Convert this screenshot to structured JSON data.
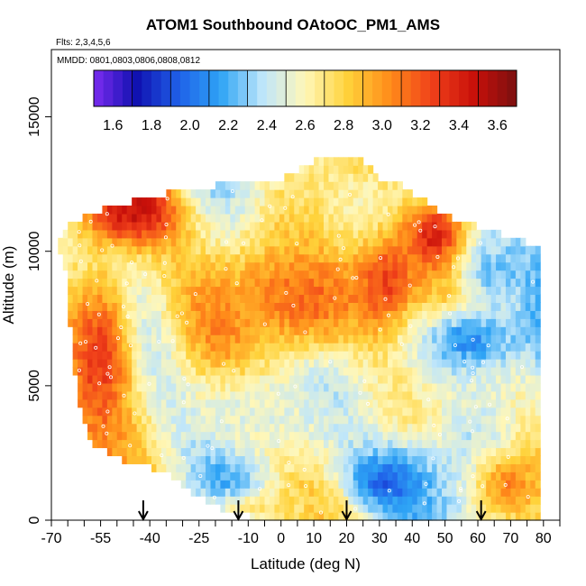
{
  "chart_data": {
    "type": "heatmap",
    "title": "ATOM1 Southbound OAtoOC_PM1_AMS",
    "flights_note": "Flts: 2,3,4,5,6",
    "dates_note": "MMDD: 0801,0803,0806,0808,0812",
    "xlabel": "Latitude (deg N)",
    "ylabel": "Altitude (m)",
    "xlim": [
      -70,
      85
    ],
    "ylim": [
      0,
      17500
    ],
    "x_ticks": [
      -70,
      -55,
      -40,
      -25,
      -10,
      0,
      10,
      20,
      30,
      40,
      50,
      60,
      70,
      80
    ],
    "x_minor_ticks": [
      -65,
      -60,
      -50,
      -45,
      -35,
      -30,
      -20,
      -15,
      -5,
      5,
      15,
      25,
      35,
      45,
      55,
      65,
      75,
      85
    ],
    "y_ticks": [
      0,
      5000,
      10000,
      15000
    ],
    "colorbar": {
      "min": 1.5,
      "max": 3.7,
      "ticks": [
        1.6,
        1.8,
        2.0,
        2.2,
        2.4,
        2.6,
        2.8,
        3.0,
        3.2,
        3.4,
        3.6
      ],
      "colors": [
        "#7b2cf0",
        "#1010b0",
        "#1f5fe8",
        "#2ea4f5",
        "#bfe6fa",
        "#fff7b8",
        "#ffd23a",
        "#ff8c1a",
        "#f0401a",
        "#c8100a",
        "#7a1010"
      ]
    },
    "profile_markers_latitude": [
      -42,
      -13,
      20,
      61
    ],
    "domain_envelope": {
      "lat": [
        -68,
        -66,
        -62,
        -58,
        -52,
        -46,
        -40,
        -35,
        -30,
        -25,
        -20,
        -15,
        -10,
        -5,
        0,
        5,
        10,
        15,
        20,
        25,
        30,
        35,
        40,
        45,
        50,
        55,
        60,
        65,
        70,
        75,
        79
      ],
      "alt_min": [
        10200,
        9800,
        4500,
        3000,
        2600,
        2300,
        2100,
        1900,
        1500,
        1000,
        700,
        400,
        300,
        200,
        150,
        100,
        100,
        100,
        100,
        100,
        100,
        100,
        100,
        100,
        100,
        100,
        100,
        100,
        100,
        100,
        100
      ],
      "alt_max": [
        10300,
        10700,
        11000,
        11200,
        11500,
        11700,
        11900,
        12000,
        12000,
        12100,
        12300,
        12400,
        12400,
        12400,
        12500,
        12800,
        13200,
        13200,
        13200,
        13300,
        12600,
        12500,
        12000,
        11600,
        11200,
        11000,
        10800,
        10600,
        10400,
        10200,
        10000
      ]
    },
    "features": [
      {
        "lat": [
          -60,
          -30
        ],
        "alt": [
          10500,
          12500
        ],
        "value": 3.5
      },
      {
        "lat": [
          -66,
          -45
        ],
        "alt": [
          2000,
          10000
        ],
        "value": 3.3
      },
      {
        "lat": [
          -20,
          35
        ],
        "alt": [
          6000,
          10500
        ],
        "value": 3.15
      },
      {
        "lat": [
          25,
          40
        ],
        "alt": [
          7000,
          10500
        ],
        "value": 3.3
      },
      {
        "lat": [
          40,
          55
        ],
        "alt": [
          9500,
          11500
        ],
        "value": 3.45
      },
      {
        "lat": [
          45,
          60
        ],
        "alt": [
          7000,
          8500
        ],
        "value": 3.35
      },
      {
        "lat": [
          -30,
          15
        ],
        "alt": [
          2500,
          5500
        ],
        "value": 2.5
      },
      {
        "lat": [
          20,
          45
        ],
        "alt": [
          200,
          2500
        ],
        "value": 1.95
      },
      {
        "lat": [
          40,
          75
        ],
        "alt": [
          5500,
          8000
        ],
        "value": 2.1
      },
      {
        "lat": [
          -25,
          20
        ],
        "alt": [
          100,
          800
        ],
        "value": 2.75
      },
      {
        "lat": [
          60,
          79
        ],
        "alt": [
          100,
          2500
        ],
        "value": 3.05
      },
      {
        "lat": [
          55,
          75
        ],
        "alt": [
          8000,
          10500
        ],
        "value": 2.25
      }
    ]
  }
}
